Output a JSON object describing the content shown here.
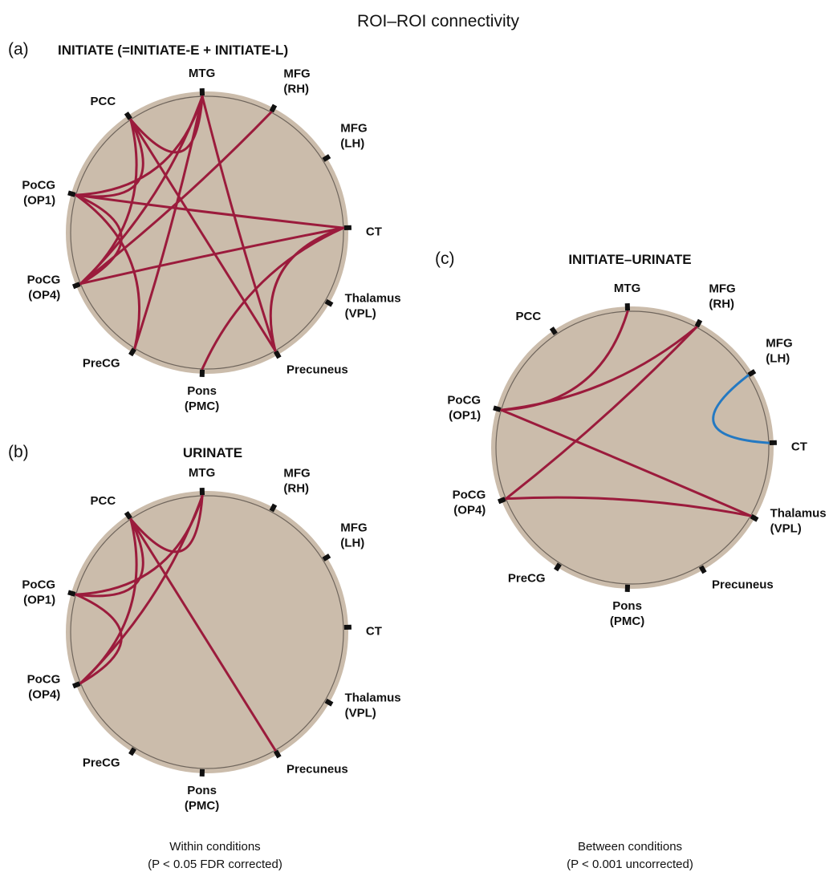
{
  "figure_title": "ROI–ROI connectivity",
  "colors": {
    "ring_outer": "#cbbcab",
    "ring_fill": "#cbbcae",
    "ring_line": "#6f655c",
    "positive_edge": "#9b1b3c",
    "negative_edge": "#2479c2",
    "node_marker": "#111111"
  },
  "roi_nodes": [
    {
      "id": "mtg",
      "lines": [
        "MTG"
      ]
    },
    {
      "id": "mfg-rh",
      "lines": [
        "MFG",
        "(RH)"
      ]
    },
    {
      "id": "mfg-lh",
      "lines": [
        "MFG",
        "(LH)"
      ]
    },
    {
      "id": "ct",
      "lines": [
        "CT"
      ]
    },
    {
      "id": "thalamus-vpl",
      "lines": [
        "Thalamus",
        "(VPL)"
      ]
    },
    {
      "id": "precuneus",
      "lines": [
        "Precuneus"
      ]
    },
    {
      "id": "pons-pmc",
      "lines": [
        "Pons",
        "(PMC)"
      ]
    },
    {
      "id": "precg",
      "lines": [
        "PreCG"
      ]
    },
    {
      "id": "pocg-op4",
      "lines": [
        "PoCG",
        "(OP4)"
      ]
    },
    {
      "id": "pocg-op1",
      "lines": [
        "PoCG",
        "(OP1)"
      ]
    },
    {
      "id": "pcc",
      "lines": [
        "PCC"
      ]
    }
  ],
  "panels": [
    {
      "id": "a",
      "letter": "(a)",
      "title": "INITIATE (=INITIATE-E + INITIATE-L)",
      "connections": [
        {
          "from": "mtg",
          "to": "pcc",
          "sign": "positive"
        },
        {
          "from": "mtg",
          "to": "pocg-op1",
          "sign": "positive"
        },
        {
          "from": "mtg",
          "to": "pocg-op4",
          "sign": "positive"
        },
        {
          "from": "mtg",
          "to": "precg",
          "sign": "positive"
        },
        {
          "from": "mtg",
          "to": "precuneus",
          "sign": "positive"
        },
        {
          "from": "pcc",
          "to": "pocg-op1",
          "sign": "positive"
        },
        {
          "from": "pcc",
          "to": "pocg-op4",
          "sign": "positive"
        },
        {
          "from": "pcc",
          "to": "precuneus",
          "sign": "positive"
        },
        {
          "from": "pocg-op1",
          "to": "pocg-op4",
          "sign": "positive"
        },
        {
          "from": "pocg-op1",
          "to": "precg",
          "sign": "positive"
        },
        {
          "from": "pocg-op4",
          "to": "mfg-rh",
          "sign": "positive"
        },
        {
          "from": "pocg-op4",
          "to": "ct",
          "sign": "positive"
        },
        {
          "from": "ct",
          "to": "precuneus",
          "sign": "positive"
        },
        {
          "from": "ct",
          "to": "pons-pmc",
          "sign": "positive"
        },
        {
          "from": "ct",
          "to": "pocg-op1",
          "sign": "positive"
        }
      ]
    },
    {
      "id": "b",
      "letter": "(b)",
      "title": "URINATE",
      "connections": [
        {
          "from": "mtg",
          "to": "pcc",
          "sign": "positive"
        },
        {
          "from": "mtg",
          "to": "pocg-op1",
          "sign": "positive"
        },
        {
          "from": "mtg",
          "to": "pocg-op4",
          "sign": "positive"
        },
        {
          "from": "pcc",
          "to": "pocg-op1",
          "sign": "positive"
        },
        {
          "from": "pcc",
          "to": "pocg-op4",
          "sign": "positive"
        },
        {
          "from": "pcc",
          "to": "precuneus",
          "sign": "positive"
        },
        {
          "from": "pocg-op1",
          "to": "pocg-op4",
          "sign": "positive"
        }
      ]
    },
    {
      "id": "c",
      "letter": "(c)",
      "title": "INITIATE–URINATE",
      "connections": [
        {
          "from": "pocg-op1",
          "to": "mtg",
          "sign": "positive"
        },
        {
          "from": "pocg-op1",
          "to": "mfg-rh",
          "sign": "positive"
        },
        {
          "from": "pocg-op1",
          "to": "thalamus-vpl",
          "sign": "positive"
        },
        {
          "from": "pocg-op4",
          "to": "mfg-rh",
          "sign": "positive"
        },
        {
          "from": "pocg-op4",
          "to": "thalamus-vpl",
          "sign": "positive"
        },
        {
          "from": "mfg-lh",
          "to": "ct",
          "sign": "negative"
        }
      ]
    }
  ],
  "captions": {
    "within": {
      "line1": "Within conditions",
      "line2": "(P < 0.05 FDR corrected)"
    },
    "between": {
      "line1": "Between conditions",
      "line2": "(P < 0.001 uncorrected)"
    }
  }
}
